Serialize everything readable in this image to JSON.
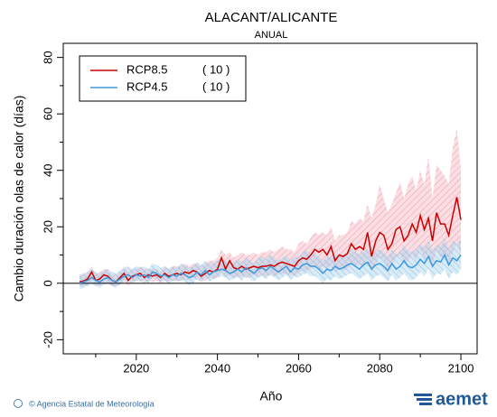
{
  "chart_data": {
    "type": "line",
    "title": "ALACANT/ALICANTE",
    "subtitle": "ANUAL",
    "x_label": "Año",
    "y_label": "Cambio duración olas de calor (días)",
    "footer": "© Agencia Estatal de Meteorología",
    "logo": "aemet",
    "xlim": [
      2002,
      2104
    ],
    "ylim": [
      -25,
      85
    ],
    "xticks": [
      2020,
      2040,
      2060,
      2080,
      2100
    ],
    "xticks_minor": [
      2010,
      2030,
      2050,
      2070,
      2090
    ],
    "yticks": [
      -20,
      0,
      20,
      40,
      60,
      80
    ],
    "yticks_minor": [
      -10,
      10,
      30,
      50,
      70
    ],
    "zero_line": true,
    "legend": "upper-left",
    "x": [
      2006,
      2007,
      2008,
      2009,
      2010,
      2011,
      2012,
      2013,
      2014,
      2015,
      2016,
      2017,
      2018,
      2019,
      2020,
      2021,
      2022,
      2023,
      2024,
      2025,
      2026,
      2027,
      2028,
      2029,
      2030,
      2031,
      2032,
      2033,
      2034,
      2035,
      2036,
      2037,
      2038,
      2039,
      2040,
      2041,
      2042,
      2043,
      2044,
      2045,
      2046,
      2047,
      2048,
      2049,
      2050,
      2051,
      2052,
      2053,
      2054,
      2055,
      2056,
      2057,
      2058,
      2059,
      2060,
      2061,
      2062,
      2063,
      2064,
      2065,
      2066,
      2067,
      2068,
      2069,
      2070,
      2071,
      2072,
      2073,
      2074,
      2075,
      2076,
      2077,
      2078,
      2079,
      2080,
      2081,
      2082,
      2083,
      2084,
      2085,
      2086,
      2087,
      2088,
      2089,
      2090,
      2091,
      2092,
      2093,
      2094,
      2095,
      2096,
      2097,
      2098,
      2099,
      2100
    ],
    "series": [
      {
        "name": "RCP8.5",
        "note": "( 10 )",
        "color": "#cc0000",
        "band_color": "#f5b5c0",
        "values": [
          0.5,
          0.8,
          1.5,
          4,
          1,
          1.5,
          3,
          2.5,
          1,
          0.5,
          2,
          3.5,
          1,
          2.5,
          3,
          3.5,
          2,
          3,
          2.5,
          3,
          2,
          3.5,
          2.5,
          3,
          3.5,
          3,
          4,
          3.5,
          4.5,
          4,
          2.5,
          3.5,
          4.5,
          4,
          5,
          9,
          5,
          8,
          5.5,
          5,
          6,
          5,
          5.5,
          6,
          5.5,
          6,
          6,
          6.5,
          6,
          7,
          7.5,
          7,
          6.5,
          6,
          8,
          9,
          8.5,
          10,
          12,
          11,
          12,
          10,
          13,
          8,
          10,
          9.5,
          10.5,
          14,
          12,
          13,
          12,
          18,
          9.5,
          15,
          18,
          17,
          12,
          14,
          19,
          20,
          15,
          17,
          21,
          18,
          24,
          19,
          23,
          15,
          25,
          21,
          21,
          17,
          24,
          30.5,
          22.5
        ],
        "upper": [
          3,
          3,
          4,
          6,
          3,
          4,
          5,
          5,
          3,
          3,
          4,
          6,
          4,
          5,
          5,
          6,
          5,
          5,
          5,
          5,
          4,
          6,
          5,
          6,
          6,
          6,
          7,
          6,
          7,
          7,
          6,
          7,
          8,
          8,
          9,
          12,
          10,
          11,
          9,
          10,
          11,
          10,
          10,
          11,
          10,
          11,
          11,
          12,
          11,
          12,
          13,
          12,
          12,
          11,
          14,
          15,
          14,
          16,
          18,
          17,
          18,
          17,
          20,
          15,
          17,
          17,
          18,
          22,
          21,
          23,
          22,
          28,
          23,
          28,
          35,
          30,
          25,
          28,
          32,
          36,
          30,
          35,
          38,
          33,
          40,
          35,
          45,
          30,
          42,
          40,
          38,
          35,
          48,
          55,
          40
        ],
        "lower": [
          -1,
          -1,
          -0.5,
          1,
          -1,
          -0.5,
          0.5,
          0,
          -1,
          -1,
          0,
          1,
          -1,
          0.5,
          1,
          1,
          0,
          1,
          0.5,
          1,
          0,
          1,
          0.5,
          1,
          1,
          1,
          1.5,
          1,
          2,
          1.5,
          0.5,
          1,
          2,
          1.5,
          2,
          4,
          2,
          3,
          2,
          2,
          2.5,
          2,
          2,
          3,
          2,
          3,
          2.5,
          3,
          2.5,
          3,
          3.5,
          3,
          3,
          2.5,
          4,
          4.5,
          4,
          5,
          6,
          5,
          6,
          5,
          6.5,
          4,
          5,
          4.5,
          5,
          7,
          6,
          6.5,
          6,
          9,
          4,
          7,
          9,
          8,
          5,
          6,
          9,
          10,
          7,
          8,
          10,
          8,
          12,
          8,
          11,
          6,
          12,
          9,
          10,
          7,
          11,
          14,
          10
        ]
      },
      {
        "name": "RCP4.5",
        "note": "( 10 )",
        "color": "#3d99dd",
        "band_color": "#a9d3ee",
        "values": [
          0,
          0.5,
          1,
          2,
          1,
          0.5,
          1.5,
          2,
          1,
          0.5,
          1.5,
          2.5,
          3,
          2,
          3,
          2.5,
          3,
          2,
          4,
          3.5,
          2.5,
          3,
          2,
          3,
          2.5,
          3.5,
          3,
          2,
          2.5,
          4,
          3,
          4.5,
          3,
          4,
          4.5,
          5,
          4.5,
          3.5,
          4,
          5,
          4,
          5.5,
          4.5,
          3.5,
          5,
          5.5,
          4.5,
          6,
          5,
          4,
          5,
          6,
          4,
          5.5,
          5,
          6.5,
          7,
          6,
          6,
          5,
          3.5,
          5,
          4.5,
          6,
          5,
          5.5,
          6.5,
          7,
          6,
          5,
          6.5,
          7.5,
          5,
          6.5,
          7,
          6,
          4.5,
          7,
          5,
          6,
          8,
          6,
          5.5,
          6.5,
          8.5,
          7,
          9.5,
          6,
          8,
          7.5,
          10,
          6.5,
          9,
          8,
          10
        ],
        "upper": [
          3,
          3.5,
          4,
          5,
          4,
          3.5,
          4.5,
          5,
          4,
          3.5,
          4.5,
          5.5,
          6,
          5,
          6,
          5.5,
          6,
          5,
          7,
          6.5,
          5.5,
          6,
          5,
          6,
          5.5,
          7,
          6.5,
          5.5,
          6,
          7.5,
          6.5,
          8,
          6.5,
          7.5,
          8,
          8.5,
          8,
          7,
          7.5,
          8.5,
          7.5,
          9,
          8,
          7,
          9,
          9.5,
          8.5,
          10,
          9,
          8,
          9,
          10,
          8,
          9.5,
          9,
          11,
          11.5,
          10.5,
          10.5,
          9.5,
          8,
          9.5,
          9,
          10.5,
          9.5,
          10,
          11,
          12,
          11,
          10,
          11.5,
          12.5,
          10,
          11.5,
          12,
          11,
          9.5,
          12,
          10,
          11,
          13.5,
          11.5,
          11,
          12,
          14,
          12.5,
          15,
          11.5,
          13.5,
          13,
          16,
          12,
          15,
          14,
          16
        ],
        "lower": [
          -2,
          -1.5,
          -1,
          0,
          -1,
          -1.5,
          -0.5,
          0,
          -1,
          -1.5,
          -0.5,
          0.5,
          1,
          0,
          1,
          0.5,
          1,
          0,
          2,
          1.5,
          0.5,
          1,
          0,
          1,
          0.5,
          1,
          0.5,
          -0.5,
          0,
          1.5,
          0.5,
          2,
          0.5,
          1.5,
          2,
          2.5,
          2,
          1,
          1.5,
          2.5,
          1,
          2.5,
          1.5,
          0.5,
          2,
          2.5,
          1.5,
          3,
          2,
          1,
          2,
          3,
          1,
          2.5,
          2,
          3,
          3.5,
          2.5,
          2.5,
          1.5,
          0,
          1.5,
          1,
          2.5,
          1.5,
          2,
          3,
          3.5,
          2.5,
          1.5,
          2.5,
          3.5,
          1,
          2.5,
          3,
          2,
          0.5,
          3,
          1,
          2,
          3.5,
          1.5,
          1,
          2,
          4,
          2.5,
          5,
          1.5,
          3.5,
          3,
          5,
          1.5,
          4,
          3,
          5
        ]
      }
    ]
  }
}
